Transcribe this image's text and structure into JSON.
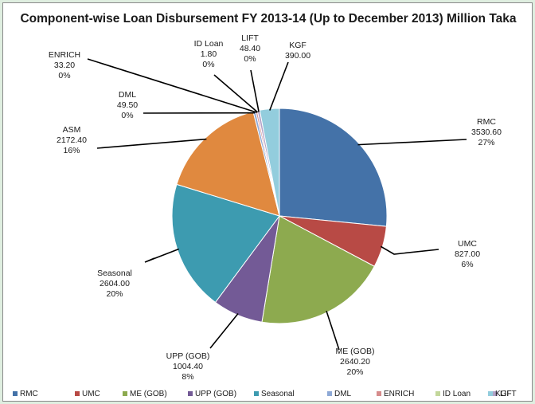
{
  "chart_data": {
    "type": "pie",
    "title": "Component-wise Loan Disbursement FY 2013-14 (Up to December 2013) Million Taka",
    "slices": [
      {
        "name": "RMC",
        "value": 3530.6,
        "value_label": "3530.60",
        "percent_label": "27%",
        "color": "#4472a8"
      },
      {
        "name": "UMC",
        "value": 827.0,
        "value_label": "827.00",
        "percent_label": "6%",
        "color": "#b84a45"
      },
      {
        "name": "ME (GOB)",
        "value": 2640.2,
        "value_label": "2640.20",
        "percent_label": "20%",
        "color": "#8daa4f"
      },
      {
        "name": "UPP (GOB)",
        "value": 1004.4,
        "value_label": "1004.40",
        "percent_label": "8%",
        "color": "#735a96"
      },
      {
        "name": "Seasonal",
        "value": 2604.0,
        "value_label": "2604.00",
        "percent_label": "20%",
        "color": "#3d9bb0"
      },
      {
        "name": "ASM",
        "value": 2172.4,
        "value_label": "2172.40",
        "percent_label": "16%",
        "color": "#e0893f"
      },
      {
        "name": "DML",
        "value": 49.5,
        "value_label": "49.50",
        "percent_label": "0%",
        "color": "#8ea9d6"
      },
      {
        "name": "ENRICH",
        "value": 33.2,
        "value_label": "33.20",
        "percent_label": "0%",
        "color": "#d68c8c"
      },
      {
        "name": "ID Loan",
        "value": 1.8,
        "value_label": "1.80",
        "percent_label": "0%",
        "color": "#c3d79b"
      },
      {
        "name": "LIFT",
        "value": 48.4,
        "value_label": "48.40",
        "percent_label": "0%",
        "color": "#b3a2c7"
      },
      {
        "name": "KGF",
        "value": 390.0,
        "value_label": "390.00",
        "percent_label": "",
        "color": "#93cddd"
      }
    ],
    "legend": {
      "position": "bottom",
      "entries": [
        {
          "name": "RMC",
          "color": "#4472a8"
        },
        {
          "name": "UMC",
          "color": "#b84a45"
        },
        {
          "name": "ME (GOB)",
          "color": "#8daa4f"
        },
        {
          "name": "UPP (GOB)",
          "color": "#735a96"
        },
        {
          "name": "Seasonal",
          "color": "#3d9bb0"
        },
        {
          "name": "DML",
          "color": "#8ea9d6"
        },
        {
          "name": "ENRICH",
          "color": "#d68c8c"
        },
        {
          "name": "ID Loan",
          "color": "#c3d79b"
        },
        {
          "name": "LIFT",
          "color": "#b3a2c7"
        },
        {
          "name": "KGF",
          "color": "#93cddd"
        }
      ]
    }
  }
}
